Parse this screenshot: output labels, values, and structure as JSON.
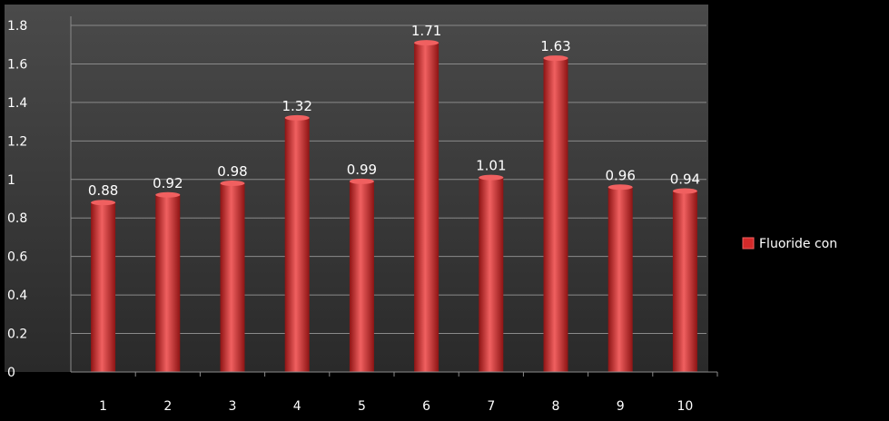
{
  "chart_data": {
    "type": "bar",
    "categories": [
      "1",
      "2",
      "3",
      "4",
      "5",
      "6",
      "7",
      "8",
      "9",
      "10"
    ],
    "series": [
      {
        "name": "Fluoride con",
        "values": [
          0.88,
          0.92,
          0.98,
          1.32,
          0.99,
          1.71,
          1.01,
          1.63,
          0.96,
          0.94
        ]
      }
    ],
    "data_labels": [
      "0.88",
      "0.92",
      "0.98",
      "1.32",
      "0.99",
      "1.71",
      "1.01",
      "1.63",
      "0.96",
      "0.94"
    ],
    "y_ticks": [
      0,
      0.2,
      0.4,
      0.6,
      0.8,
      1,
      1.2,
      1.4,
      1.6,
      1.8
    ],
    "y_tick_labels": [
      "0",
      "0.2",
      "0.4",
      "0.6",
      "0.8",
      "1",
      "1.2",
      "1.4",
      "1.6",
      "1.8"
    ],
    "ylim": [
      0,
      1.8
    ],
    "grid": true,
    "legend_position": "right",
    "title": "",
    "xlabel": "",
    "ylabel": "",
    "colors": {
      "bar": "#d42a2a",
      "bar_dark": "#8e1414",
      "bar_light": "#f06060",
      "plot_background_top": "#4a4a4a",
      "plot_background_bottom": "#2a2a2a",
      "outer_background": "#000000",
      "grid": "#8a8a8a",
      "text": "#ffffff"
    }
  }
}
